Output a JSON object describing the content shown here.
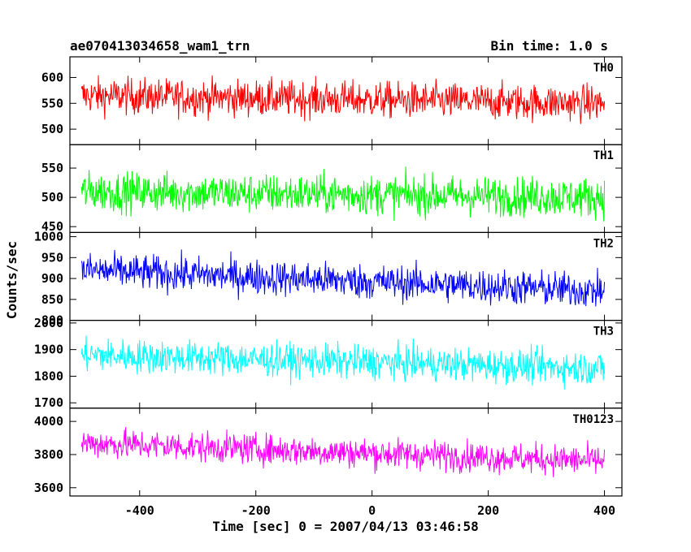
{
  "header": {
    "left_title": "ae070413034658_wam1_trn",
    "right_title": "Bin time: 1.0 s"
  },
  "chart_data": {
    "type": "line",
    "xlabel": "Time [sec] 0 = 2007/04/13 03:46:58",
    "ylabel": "Counts/sec",
    "xlim": [
      -520,
      430
    ],
    "x_ticks": [
      -400,
      -200,
      0,
      200,
      400
    ],
    "x_range": [
      -500,
      400
    ],
    "bin_time_s": 1.0,
    "panels": [
      {
        "name": "TH0",
        "color": "#ff0000",
        "ylim": [
          470,
          640
        ],
        "y_ticks": [
          500,
          550,
          600
        ],
        "mean_start": 565,
        "mean_end": 550,
        "noise": 25
      },
      {
        "name": "TH1",
        "color": "#00ff00",
        "ylim": [
          440,
          590
        ],
        "y_ticks": [
          450,
          500,
          550
        ],
        "mean_start": 510,
        "mean_end": 500,
        "noise": 24
      },
      {
        "name": "TH2",
        "color": "#0000ff",
        "ylim": [
          800,
          1010
        ],
        "y_ticks": [
          800,
          850,
          900,
          950,
          1000
        ],
        "mean_start": 920,
        "mean_end": 870,
        "noise": 30
      },
      {
        "name": "TH3",
        "color": "#00ffff",
        "ylim": [
          1680,
          2010
        ],
        "y_ticks": [
          1700,
          1800,
          1900,
          2000
        ],
        "mean_start": 1880,
        "mean_end": 1830,
        "noise": 45
      },
      {
        "name": "TH0123",
        "color": "#ff00ff",
        "ylim": [
          3550,
          4080
        ],
        "y_ticks": [
          3600,
          3800,
          4000
        ],
        "mean_start": 3870,
        "mean_end": 3760,
        "noise": 65
      }
    ]
  }
}
